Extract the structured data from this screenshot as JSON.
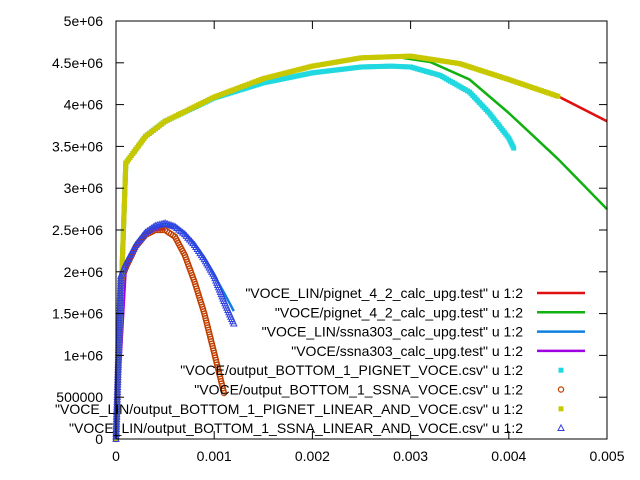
{
  "chart_data": {
    "type": "line",
    "xlim": [
      0,
      0.005
    ],
    "ylim": [
      0,
      5000000
    ],
    "grid": false,
    "legend_position": "bottom-right",
    "x_ticks": [
      {
        "value": 0,
        "label": "0"
      },
      {
        "value": 0.001,
        "label": "0.001"
      },
      {
        "value": 0.002,
        "label": "0.002"
      },
      {
        "value": 0.003,
        "label": "0.003"
      },
      {
        "value": 0.004,
        "label": "0.004"
      },
      {
        "value": 0.005,
        "label": "0.005"
      }
    ],
    "y_ticks": [
      {
        "value": 0,
        "label": "0"
      },
      {
        "value": 500000,
        "label": "500000"
      },
      {
        "value": 1000000,
        "label": "1e+06"
      },
      {
        "value": 1500000,
        "label": "1.5e+06"
      },
      {
        "value": 2000000,
        "label": "2e+06"
      },
      {
        "value": 2500000,
        "label": "2.5e+06"
      },
      {
        "value": 3000000,
        "label": "3e+06"
      },
      {
        "value": 3500000,
        "label": "3.5e+06"
      },
      {
        "value": 4000000,
        "label": "4e+06"
      },
      {
        "value": 4500000,
        "label": "4.5e+06"
      },
      {
        "value": 5000000,
        "label": "5e+06"
      }
    ],
    "series": [
      {
        "name": "\"VOCE_LIN/pignet_4_2_calc_upg.test\" u 1:2",
        "style": "line",
        "color": "#e01010",
        "x": [
          0,
          0.0001,
          0.0003,
          0.0005,
          0.001,
          0.0015,
          0.002,
          0.0025,
          0.003,
          0.0035,
          0.004,
          0.0045,
          0.005
        ],
        "y": [
          0,
          3300000,
          3620000,
          3800000,
          4090000,
          4310000,
          4460000,
          4560000,
          4570000,
          4480000,
          4310000,
          4100000,
          3800000
        ]
      },
      {
        "name": "\"VOCE/pignet_4_2_calc_upg.test\" u 1:2",
        "style": "line",
        "color": "#10b010",
        "x": [
          0,
          0.0001,
          0.0003,
          0.0005,
          0.001,
          0.0015,
          0.002,
          0.0025,
          0.0028,
          0.0032,
          0.0036,
          0.004,
          0.0045,
          0.005
        ],
        "y": [
          0,
          3300000,
          3620000,
          3800000,
          4090000,
          4310000,
          4460000,
          4560000,
          4580000,
          4510000,
          4300000,
          3900000,
          3350000,
          2750000
        ]
      },
      {
        "name": "\"VOCE_LIN/ssna303_calc_upg.test\" u 1:2",
        "style": "line",
        "color": "#1080e0",
        "x": [
          0,
          0.0001,
          0.0002,
          0.0003,
          0.0004,
          0.0005,
          0.0006,
          0.0007,
          0.0008,
          0.0009,
          0.001,
          0.0011,
          0.0012
        ],
        "y": [
          0,
          2100000,
          2320000,
          2470000,
          2550000,
          2580000,
          2550000,
          2460000,
          2330000,
          2160000,
          1960000,
          1750000,
          1530000
        ]
      },
      {
        "name": "\"VOCE/ssna303_calc_upg.test\" u 1:2",
        "style": "line",
        "color": "#a000e0",
        "x": [
          0,
          0.0001,
          0.0002,
          0.0003,
          0.0004,
          0.0005
        ],
        "y": [
          0,
          2050000,
          2300000,
          2440000,
          2500000,
          2510000
        ]
      },
      {
        "name": "\"VOCE/output_BOTTOM_1_PIGNET_VOCE.csv\" u 1:2",
        "style": "square",
        "color": "#20d8e0",
        "x": [
          0,
          0.0001,
          0.0003,
          0.0005,
          0.001,
          0.0015,
          0.002,
          0.0025,
          0.0028,
          0.003,
          0.0033,
          0.0036,
          0.0038,
          0.004,
          0.00405
        ],
        "y": [
          0,
          3300000,
          3620000,
          3800000,
          4080000,
          4260000,
          4380000,
          4450000,
          4460000,
          4450000,
          4350000,
          4150000,
          3900000,
          3600000,
          3480000
        ]
      },
      {
        "name": "\"VOCE/output_BOTTOM_1_SSNA_VOCE.csv\" u 1:2",
        "style": "circle",
        "color": "#c04000",
        "x": [
          0,
          5e-05,
          0.0001,
          0.0002,
          0.0003,
          0.0004,
          0.0005,
          0.0006,
          0.0007,
          0.0008,
          0.0009,
          0.001,
          0.0011
        ],
        "y": [
          0,
          1900000,
          2050000,
          2300000,
          2440000,
          2500000,
          2500000,
          2420000,
          2200000,
          1880000,
          1500000,
          1030000,
          550000
        ]
      },
      {
        "name": "\"VOCE_LIN/output_BOTTOM_1_PIGNET_LINEAR_AND_VOCE.csv\" u 1:2",
        "style": "square",
        "color": "#c8c800",
        "x": [
          0,
          0.0001,
          0.0003,
          0.0005,
          0.001,
          0.0015,
          0.002,
          0.0025,
          0.003,
          0.0035,
          0.004,
          0.0045
        ],
        "y": [
          0,
          3300000,
          3620000,
          3800000,
          4090000,
          4310000,
          4460000,
          4560000,
          4580000,
          4490000,
          4300000,
          4100000
        ]
      },
      {
        "name": "\"VOCE_LIN/output_BOTTOM_1_SSNA_LINEAR_AND_VOCE.csv\" u 1:2",
        "style": "triangle",
        "color": "#3040e0",
        "x": [
          0,
          5e-05,
          0.0001,
          0.0002,
          0.0003,
          0.0004,
          0.0005,
          0.0006,
          0.0007,
          0.0008,
          0.0009,
          0.001,
          0.0011,
          0.0012
        ],
        "y": [
          0,
          1950000,
          2100000,
          2320000,
          2470000,
          2550000,
          2580000,
          2540000,
          2450000,
          2320000,
          2150000,
          1950000,
          1650000,
          1380000
        ]
      }
    ]
  }
}
